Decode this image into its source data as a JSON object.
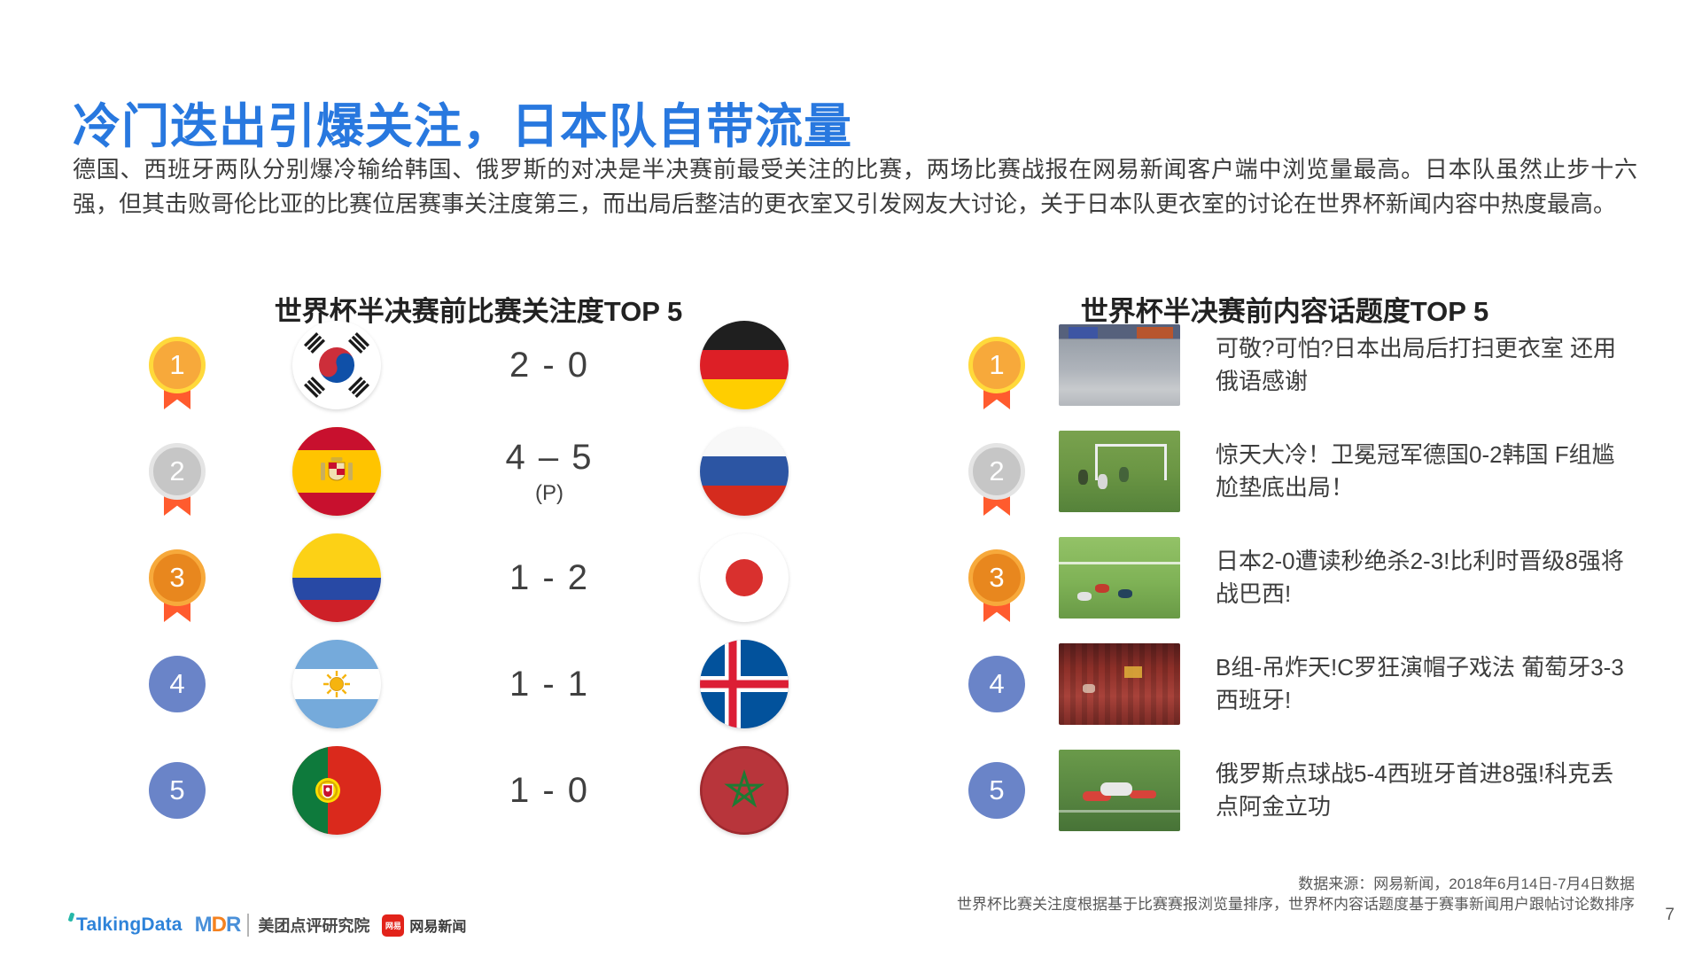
{
  "page": {
    "title": "冷门迭出引爆关注，日本队自带流量",
    "intro": "德国、西班牙两队分别爆冷输给韩国、俄罗斯的对决是半决赛前最受关注的比赛，两场比赛战报在网易新闻客户端中浏览量最高。日本队虽然止步十六强，但其击败哥伦比亚的比赛位居赛事关注度第三，而出局后整洁的更衣室又引发网友大讨论，关于日本队更衣室的讨论在世界杯新闻内容中热度最高。",
    "page_number": "7"
  },
  "left_panel": {
    "heading": "世界杯半决赛前比赛关注度TOP 5",
    "rows": [
      {
        "rank": "1",
        "rank_style": "gold-medal",
        "home_flag": "south-korea",
        "score": "2 - 0",
        "score_note": "",
        "away_flag": "germany"
      },
      {
        "rank": "2",
        "rank_style": "silver-medal",
        "home_flag": "spain",
        "score": "4 – 5",
        "score_note": "(P)",
        "away_flag": "russia"
      },
      {
        "rank": "3",
        "rank_style": "bronze-medal",
        "home_flag": "colombia",
        "score": "1 - 2",
        "score_note": "",
        "away_flag": "japan"
      },
      {
        "rank": "4",
        "rank_style": "blue-circle",
        "home_flag": "argentina",
        "score": "1 - 1",
        "score_note": "",
        "away_flag": "iceland"
      },
      {
        "rank": "5",
        "rank_style": "blue-circle",
        "home_flag": "portugal",
        "score": "1 - 0",
        "score_note": "",
        "away_flag": "morocco"
      }
    ]
  },
  "right_panel": {
    "heading": "世界杯半决赛前内容话题度TOP 5",
    "rows": [
      {
        "rank": "1",
        "rank_style": "gold-medal",
        "thumb": "japan-locker-room-photo",
        "headline": "可敬?可怕?日本出局后打扫更衣室 还用俄语感谢"
      },
      {
        "rank": "2",
        "rank_style": "silver-medal",
        "thumb": "germany-korea-match-photo",
        "headline": "惊天大冷！卫冕冠军德国0-2韩国 F组尴尬垫底出局！"
      },
      {
        "rank": "3",
        "rank_style": "bronze-medal",
        "thumb": "japan-belgium-match-photo",
        "headline": "日本2-0遭读秒绝杀2-3!比利时晋级8强将战巴西!"
      },
      {
        "rank": "4",
        "rank_style": "blue-circle",
        "thumb": "portugal-spain-fans-photo",
        "headline": "B组-吊炸天!C罗狂演帽子戏法 葡萄牙3-3西班牙!"
      },
      {
        "rank": "5",
        "rank_style": "blue-circle",
        "thumb": "russia-spain-match-photo",
        "headline": "俄罗斯点球战5-4西班牙首进8强!科克丢点阿金立功"
      }
    ]
  },
  "footer": {
    "logos": {
      "talkingdata": "TalkingData",
      "mdr": "MDR",
      "meituan": "美团点评研究院",
      "netease_badge": "网易",
      "netease": "网易新闻"
    },
    "source_line1": "数据来源：网易新闻，2018年6月14日-7月4日数据",
    "source_line2": "世界杯比赛关注度根据基于比赛赛报浏览量排序，世界杯内容话题度基于赛事新闻用户跟帖讨论数排序"
  },
  "colors": {
    "title_blue": "#2878DF",
    "ribbon_orange": "#FF5B2E",
    "gold": "#F7A93B",
    "gold_ring": "#FFD93B",
    "silver": "#C6C6C6",
    "silver_ring": "#E4E4E4",
    "bronze": "#E8871E",
    "bronze_ring": "#F7A93B",
    "rank_blue": "#6A84C8"
  }
}
